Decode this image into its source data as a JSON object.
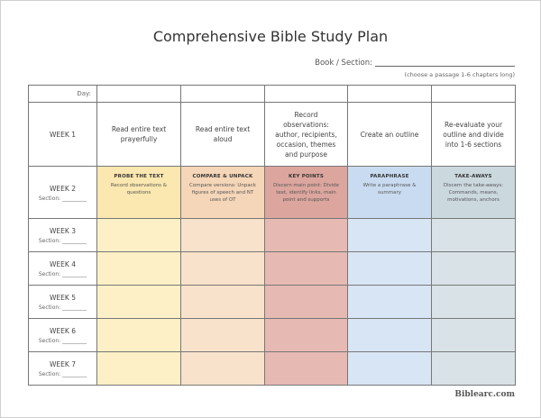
{
  "title": "Comprehensive Bible Study Plan",
  "book_section": "Book / Section:",
  "note": "(choose a passage 1-6 chapters long)",
  "table": {
    "day_label": "Day:",
    "week1": {
      "label": "WEEK 1",
      "tasks": [
        "Read entire text prayerfully",
        "Read entire text aloud",
        "Record observations: author, recipients, occasion, themes and purpose",
        "Create an outline",
        "Re-evaluate your outline and divide into 1-6 sections"
      ]
    },
    "week2": {
      "label": "WEEK 2",
      "section": "Section: _________",
      "columns": [
        {
          "heading": "PROBE THE TEXT",
          "text": "Record observations & questions"
        },
        {
          "heading": "COMPARE & UNPACK",
          "text": "Compare versions: Unpack figures of speech and NT uses of OT"
        },
        {
          "heading": "KEY POINTS",
          "text": "Discern main point: Divide text, identify links, main point and supports"
        },
        {
          "heading": "PARAPHRASE",
          "text": "Write a paraphrase & summary"
        },
        {
          "heading": "TAKE-AWAYS",
          "text": "Discern the take-aways: Commands, means, motivations, anchors"
        }
      ]
    },
    "weeks": [
      {
        "label": "WEEK 3",
        "section": "Section: _________"
      },
      {
        "label": "WEEK 4",
        "section": "Section: _________"
      },
      {
        "label": "WEEK 5",
        "section": "Section: _________"
      },
      {
        "label": "WEEK 6",
        "section": "Section: _________"
      },
      {
        "label": "WEEK 7",
        "section": "Section: _________"
      }
    ]
  },
  "footer": "Biblearc.com"
}
